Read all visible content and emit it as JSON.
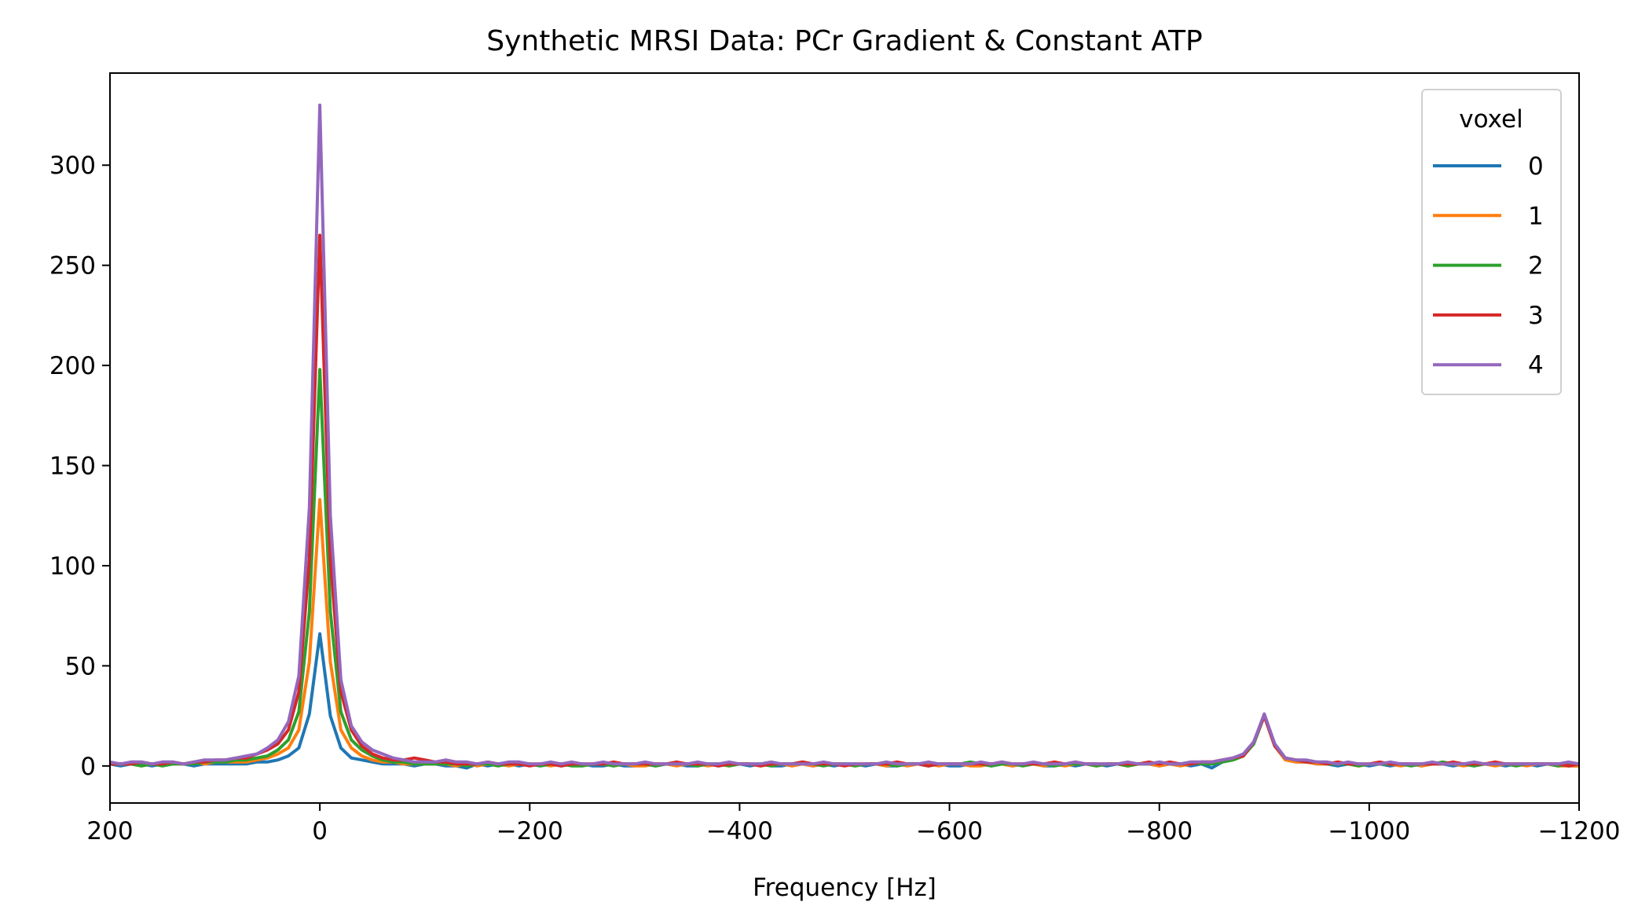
{
  "chart_data": {
    "type": "line",
    "title": "Synthetic MRSI Data: PCr Gradient & Constant ATP",
    "xlabel": "Frequency [Hz]",
    "ylabel": "",
    "xlim": [
      200,
      -1200
    ],
    "ylim": [
      -18.5,
      346
    ],
    "x_inverted": true,
    "grid": false,
    "xticks": [
      200,
      0,
      -200,
      -400,
      -600,
      -800,
      -1000,
      -1200
    ],
    "xtick_labels": [
      "200",
      "0",
      "−200",
      "−400",
      "−600",
      "−800",
      "−1000",
      "−1200"
    ],
    "yticks": [
      0,
      50,
      100,
      150,
      200,
      250,
      300
    ],
    "ytick_labels": [
      "0",
      "50",
      "100",
      "150",
      "200",
      "250",
      "300"
    ],
    "legend": {
      "title": "voxel",
      "placement": "top-right"
    },
    "x": {
      "start": 200,
      "stop": -1200,
      "step": -10
    },
    "series": [
      {
        "name": "0",
        "color": "#1f77b4",
        "values": [
          1,
          0,
          1,
          1,
          0,
          1,
          1,
          1,
          0,
          1,
          1,
          1,
          1,
          1,
          2,
          2,
          3,
          5,
          9,
          26,
          66,
          25,
          9,
          4,
          3,
          2,
          1,
          1,
          1,
          0,
          1,
          1,
          0,
          0,
          -1,
          1,
          0,
          1,
          1,
          0,
          1,
          0,
          1,
          0,
          1,
          1,
          0,
          0,
          1,
          0,
          0,
          1,
          0,
          1,
          1,
          0,
          0,
          1,
          0,
          1,
          1,
          0,
          1,
          0,
          0,
          1,
          1,
          0,
          1,
          0,
          1,
          1,
          0,
          1,
          0,
          0,
          1,
          1,
          0,
          1,
          0,
          0,
          1,
          1,
          0,
          1,
          0,
          1,
          1,
          0,
          0,
          1,
          0,
          1,
          1,
          0,
          1,
          0,
          1,
          1,
          0,
          1,
          1,
          0,
          1,
          -1,
          2,
          3,
          5,
          12,
          25,
          11,
          4,
          2,
          2,
          1,
          1,
          0,
          1,
          1,
          0,
          1,
          0,
          1,
          1,
          0,
          1,
          1,
          0,
          1,
          0,
          1,
          1,
          0,
          1,
          1,
          0,
          1,
          1,
          0,
          0
        ]
      },
      {
        "name": "1",
        "color": "#ff7f0e",
        "values": [
          1,
          1,
          1,
          0,
          1,
          1,
          1,
          1,
          2,
          1,
          2,
          2,
          2,
          2,
          3,
          4,
          6,
          9,
          18,
          52,
          133,
          52,
          18,
          9,
          5,
          3,
          2,
          2,
          1,
          1,
          1,
          1,
          1,
          0,
          1,
          0,
          1,
          1,
          0,
          1,
          1,
          1,
          0,
          1,
          1,
          0,
          1,
          1,
          0,
          1,
          0,
          0,
          1,
          1,
          0,
          1,
          1,
          0,
          1,
          0,
          1,
          1,
          0,
          1,
          1,
          0,
          1,
          0,
          1,
          1,
          1,
          0,
          1,
          1,
          0,
          1,
          0,
          1,
          1,
          0,
          1,
          1,
          0,
          0,
          1,
          1,
          0,
          1,
          1,
          0,
          1,
          0,
          1,
          1,
          0,
          1,
          1,
          0,
          1,
          1,
          0,
          1,
          0,
          1,
          2,
          2,
          3,
          3,
          5,
          12,
          25,
          10,
          3,
          2,
          2,
          1,
          1,
          2,
          1,
          0,
          1,
          1,
          1,
          0,
          1,
          0,
          1,
          1,
          1,
          0,
          1,
          1,
          0,
          1,
          1,
          0,
          1,
          1,
          0,
          0,
          0
        ]
      },
      {
        "name": "2",
        "color": "#2ca02c",
        "values": [
          1,
          1,
          1,
          0,
          1,
          0,
          1,
          1,
          1,
          2,
          2,
          2,
          3,
          3,
          4,
          5,
          8,
          13,
          27,
          77,
          198,
          77,
          27,
          13,
          8,
          5,
          3,
          2,
          2,
          1,
          1,
          1,
          1,
          1,
          0,
          1,
          1,
          0,
          1,
          1,
          1,
          0,
          1,
          1,
          0,
          0,
          1,
          1,
          0,
          1,
          1,
          1,
          0,
          1,
          1,
          1,
          0,
          1,
          1,
          0,
          1,
          1,
          1,
          0,
          1,
          1,
          2,
          1,
          0,
          1,
          1,
          0,
          1,
          1,
          1,
          0,
          1,
          1,
          0,
          1,
          1,
          1,
          2,
          1,
          0,
          1,
          1,
          0,
          1,
          1,
          0,
          1,
          1,
          1,
          0,
          1,
          1,
          0,
          1,
          1,
          2,
          1,
          1,
          2,
          1,
          1,
          2,
          3,
          5,
          11,
          25,
          10,
          4,
          3,
          2,
          2,
          1,
          1,
          1,
          0,
          1,
          1,
          1,
          1,
          0,
          1,
          1,
          2,
          1,
          1,
          0,
          1,
          1,
          1,
          0,
          1,
          1,
          1,
          0,
          1,
          1
        ]
      },
      {
        "name": "3",
        "color": "#d62728",
        "values": [
          1,
          1,
          1,
          2,
          1,
          1,
          2,
          1,
          2,
          2,
          3,
          3,
          4,
          4,
          6,
          8,
          11,
          18,
          37,
          103,
          265,
          103,
          37,
          18,
          10,
          6,
          4,
          3,
          3,
          4,
          3,
          2,
          2,
          1,
          1,
          1,
          2,
          1,
          1,
          1,
          0,
          1,
          1,
          0,
          1,
          1,
          1,
          1,
          2,
          1,
          1,
          1,
          1,
          1,
          2,
          1,
          1,
          1,
          0,
          1,
          1,
          1,
          0,
          1,
          1,
          1,
          2,
          1,
          1,
          1,
          0,
          1,
          1,
          1,
          1,
          2,
          1,
          1,
          0,
          1,
          1,
          1,
          1,
          1,
          1,
          2,
          1,
          1,
          1,
          1,
          2,
          1,
          2,
          1,
          1,
          1,
          1,
          1,
          1,
          2,
          1,
          2,
          1,
          1,
          2,
          2,
          3,
          4,
          5,
          12,
          25,
          10,
          4,
          3,
          2,
          2,
          1,
          2,
          1,
          1,
          1,
          2,
          1,
          1,
          1,
          1,
          1,
          1,
          2,
          1,
          1,
          1,
          2,
          1,
          1,
          1,
          1,
          1,
          1,
          0,
          1
        ]
      },
      {
        "name": "4",
        "color": "#9467bd",
        "values": [
          2,
          1,
          2,
          2,
          1,
          2,
          2,
          1,
          2,
          3,
          3,
          3,
          4,
          5,
          6,
          9,
          13,
          22,
          45,
          129,
          330,
          125,
          43,
          20,
          12,
          8,
          6,
          4,
          3,
          2,
          2,
          2,
          3,
          2,
          2,
          1,
          2,
          1,
          2,
          2,
          1,
          1,
          2,
          1,
          2,
          1,
          1,
          2,
          1,
          1,
          1,
          2,
          1,
          1,
          1,
          1,
          2,
          1,
          1,
          2,
          1,
          1,
          1,
          2,
          1,
          1,
          1,
          1,
          2,
          1,
          1,
          1,
          1,
          1,
          2,
          1,
          1,
          1,
          2,
          1,
          1,
          1,
          1,
          2,
          1,
          2,
          1,
          1,
          2,
          1,
          1,
          1,
          2,
          1,
          1,
          1,
          1,
          2,
          1,
          1,
          2,
          1,
          1,
          2,
          2,
          2,
          3,
          4,
          6,
          12,
          26,
          11,
          4,
          3,
          3,
          2,
          2,
          1,
          2,
          1,
          1,
          1,
          2,
          1,
          1,
          1,
          2,
          1,
          1,
          1,
          2,
          1,
          1,
          1,
          1,
          1,
          1,
          1,
          1,
          2,
          1
        ]
      }
    ]
  }
}
